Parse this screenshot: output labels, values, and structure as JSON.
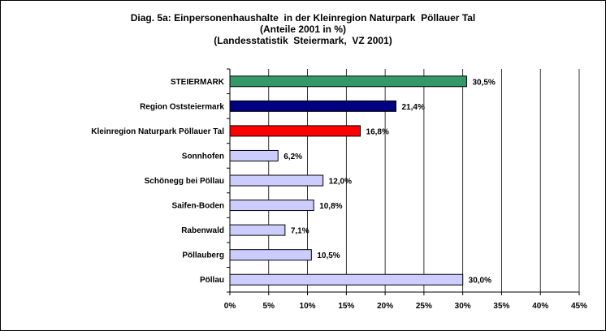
{
  "chart_data": {
    "type": "bar",
    "orientation": "horizontal",
    "title": [
      "Diag. 5a: Einpersonenhaushalte  in der Kleinregion Naturpark  Pöllauer Tal",
      "(Anteile 2001 in %)",
      "(Landesstatistik  Steiermark,  VZ 2001)"
    ],
    "categories": [
      "STEIERMARK",
      "Region Oststeiermark",
      "Kleinregion Naturpark Pöllauer Tal",
      "Sonnhofen",
      "Schönegg bei Pöllau",
      "Saifen-Boden",
      "Rabenwald",
      "Pöllauberg",
      "Pöllau"
    ],
    "values": [
      30.5,
      21.4,
      16.8,
      6.2,
      12.0,
      10.8,
      7.1,
      10.5,
      30.0
    ],
    "value_labels": [
      "30,5%",
      "21,4%",
      "16,8%",
      "6,2%",
      "12,0%",
      "10,8%",
      "7,1%",
      "10,5%",
      "30,0%"
    ],
    "bar_colors": [
      "#339966",
      "#000080",
      "#ff0000",
      "#ccccff",
      "#ccccff",
      "#ccccff",
      "#ccccff",
      "#ccccff",
      "#ccccff"
    ],
    "xlim": [
      0,
      45
    ],
    "x_ticks": [
      0,
      5,
      10,
      15,
      20,
      25,
      30,
      35,
      40,
      45
    ],
    "x_tick_labels": [
      "0%",
      "5%",
      "10%",
      "15%",
      "20%",
      "25%",
      "30%",
      "35%",
      "40%",
      "45%"
    ],
    "grid": "vertical",
    "legend": "none"
  }
}
